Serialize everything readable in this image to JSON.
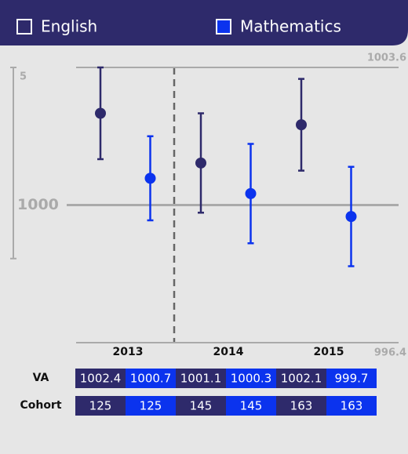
{
  "chart_data": {
    "type": "errorbar",
    "categories": [
      "2013",
      "2014",
      "2015"
    ],
    "series": [
      {
        "name": "English",
        "color": "#2e2a6b",
        "values": [
          1002.4,
          1001.1,
          1002.1
        ],
        "errors": [
          1.2,
          1.3,
          1.2
        ],
        "cohort": [
          125,
          145,
          163
        ]
      },
      {
        "name": "Mathematics",
        "color": "#0b33ee",
        "values": [
          1000.7,
          1000.3,
          999.7
        ],
        "errors": [
          1.1,
          1.3,
          1.3
        ],
        "cohort": [
          125,
          145,
          163
        ]
      }
    ],
    "ylim": [
      996.4,
      1003.6
    ],
    "yticks": [
      996.4,
      1000,
      1003.6
    ],
    "grid": true,
    "scale_bar": 5,
    "table_rows": [
      "VA",
      "Cohort"
    ]
  }
}
